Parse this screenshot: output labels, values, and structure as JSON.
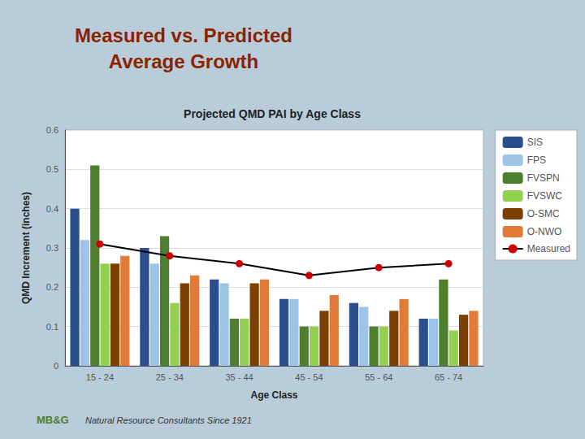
{
  "chart_data": {
    "type": "bar",
    "title": "Measured vs. Predicted\nAverage Growth",
    "subtitle": "Projected QMD PAI by Age Class",
    "annotations": [
      "MB&G",
      "Natural Resource Consultants Since 1921"
    ],
    "xlabel": "Age Class",
    "ylabel": "QMD Increment (inches)",
    "categories": [
      "15 - 24",
      "25 - 34",
      "35 - 44",
      "45 - 54",
      "55 - 64",
      "65 - 74"
    ],
    "series": [
      {
        "name": "SIS",
        "color": "#2B4E8C",
        "values": [
          0.4,
          0.3,
          0.22,
          0.17,
          0.16,
          0.12
        ]
      },
      {
        "name": "FPS",
        "color": "#9DC3E6",
        "values": [
          0.32,
          0.26,
          0.21,
          0.17,
          0.15,
          0.12
        ]
      },
      {
        "name": "FVSPN",
        "color": "#4E7F2E",
        "values": [
          0.51,
          0.33,
          0.12,
          0.1,
          0.1,
          0.22
        ]
      },
      {
        "name": "FVSWC",
        "color": "#92D050",
        "values": [
          0.26,
          0.16,
          0.12,
          0.1,
          0.1,
          0.09
        ]
      },
      {
        "name": "O-SMC",
        "color": "#7B3F00",
        "values": [
          0.26,
          0.21,
          0.21,
          0.14,
          0.14,
          0.13
        ]
      },
      {
        "name": "O-NWO",
        "color": "#E07B39",
        "values": [
          0.28,
          0.23,
          0.22,
          0.18,
          0.17,
          0.14
        ]
      },
      {
        "name": "Measured",
        "type": "line",
        "color": "#CC0000",
        "marker": "circle",
        "values": [
          0.31,
          0.28,
          0.26,
          0.23,
          0.25,
          0.26
        ]
      }
    ],
    "ylim": [
      0,
      0.6
    ],
    "yticks": [
      0,
      0.1,
      0.2,
      0.3,
      0.4,
      0.5,
      0.6
    ],
    "grid": true,
    "legend": "right"
  }
}
